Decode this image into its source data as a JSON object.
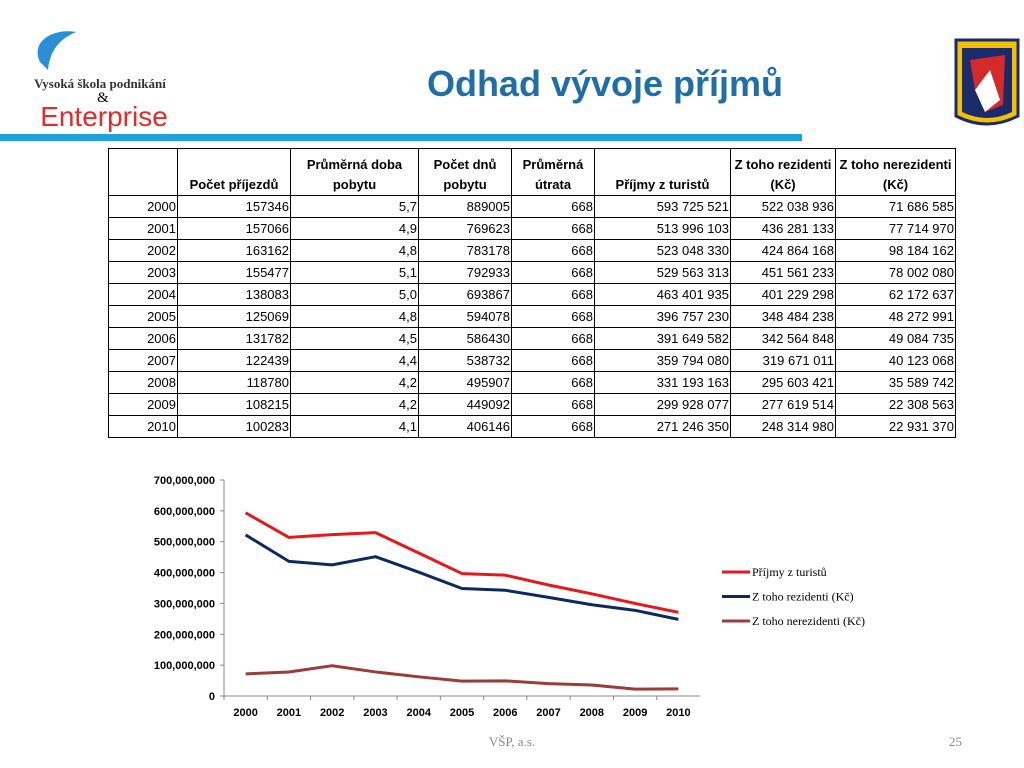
{
  "header": {
    "school": "Vysoká škola podnikání",
    "ampersand": "&",
    "brand": "Enterprise",
    "title": "Odhad vývoje příjmů"
  },
  "table": {
    "header": [
      "",
      "Počet příjezdů",
      "Průměrná doba pobytu",
      "Počet dnů pobytu",
      "Průměrná útrata",
      "Příjmy z turistů",
      "Z toho rezidenti (Kč)",
      "Z toho nerezidenti (Kč)"
    ],
    "rows": [
      [
        "2000",
        "157346",
        "5,7",
        "889005",
        "668",
        "593 725 521",
        "522 038 936",
        "71 686 585"
      ],
      [
        "2001",
        "157066",
        "4,9",
        "769623",
        "668",
        "513 996 103",
        "436 281 133",
        "77 714 970"
      ],
      [
        "2002",
        "163162",
        "4,8",
        "783178",
        "668",
        "523 048 330",
        "424 864 168",
        "98 184 162"
      ],
      [
        "2003",
        "155477",
        "5,1",
        "792933",
        "668",
        "529 563 313",
        "451 561 233",
        "78 002 080"
      ],
      [
        "2004",
        "138083",
        "5,0",
        "693867",
        "668",
        "463 401 935",
        "401 229 298",
        "62 172 637"
      ],
      [
        "2005",
        "125069",
        "4,8",
        "594078",
        "668",
        "396 757 230",
        "348 484 238",
        "48 272 991"
      ],
      [
        "2006",
        "131782",
        "4,5",
        "586430",
        "668",
        "391 649 582",
        "342 564 848",
        "49 084 735"
      ],
      [
        "2007",
        "122439",
        "4,4",
        "538732",
        "668",
        "359 794 080",
        "319 671 011",
        "40 123 068"
      ],
      [
        "2008",
        "118780",
        "4,2",
        "495907",
        "668",
        "331 193 163",
        "295 603 421",
        "35 589 742"
      ],
      [
        "2009",
        "108215",
        "4,2",
        "449092",
        "668",
        "299 928 077",
        "277 619 514",
        "22 308 563"
      ],
      [
        "2010",
        "100283",
        "4,1",
        "406146",
        "668",
        "271 246 350",
        "248 314 980",
        "22 931 370"
      ]
    ]
  },
  "chart_data": {
    "type": "line",
    "categories": [
      "2000",
      "2001",
      "2002",
      "2003",
      "2004",
      "2005",
      "2006",
      "2007",
      "2008",
      "2009",
      "2010"
    ],
    "series": [
      {
        "name": "Příjmy z turistů",
        "color": "#e3191c",
        "values": [
          593725521,
          513996103,
          523048330,
          529563313,
          463401935,
          396757230,
          391649582,
          359794080,
          331193163,
          299928077,
          271246350
        ]
      },
      {
        "name": "Z toho rezidenti (Kč)",
        "color": "#0e2a5c",
        "values": [
          522038936,
          436281133,
          424864168,
          451561233,
          401229298,
          348484238,
          342564848,
          319671011,
          295603421,
          277619514,
          248314980
        ]
      },
      {
        "name": "Z toho nerezidenti (Kč)",
        "color": "#9b3b3b",
        "values": [
          71686585,
          77714970,
          98184162,
          78002080,
          62172637,
          48272991,
          49084735,
          40123068,
          35589742,
          22308563,
          22931370
        ]
      }
    ],
    "ylim": [
      0,
      700000000
    ],
    "yticks": [
      0,
      {
        "value": 100000000,
        "label": "100,000,000"
      },
      {
        "value": 200000000,
        "label": "200,000,000"
      },
      {
        "value": 300000000,
        "label": "300,000,000"
      },
      {
        "value": 400000000,
        "label": "400,000,000"
      },
      {
        "value": 500000000,
        "label": "500,000,000"
      },
      {
        "value": 600000000,
        "label": "600,000,000"
      },
      {
        "value": 700000000,
        "label": "700,000,000"
      }
    ],
    "grid": false,
    "legend": "right"
  },
  "footer": {
    "left": "VŠP, a.s.",
    "page": "25"
  }
}
